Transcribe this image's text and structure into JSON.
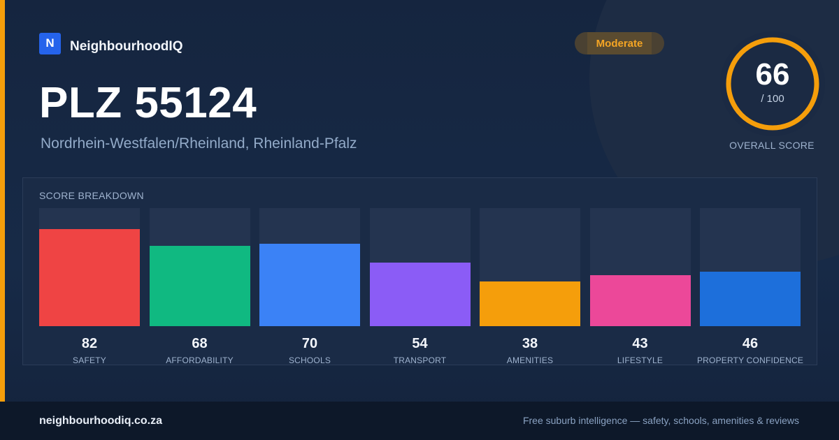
{
  "brand": {
    "logo_letter": "N",
    "name": "NeighbourhoodIQ"
  },
  "location": {
    "title": "PLZ 55124",
    "subtitle": "Nordrhein-Westfalen/Rheinland, Rheinland-Pfalz"
  },
  "badge": {
    "label": "Moderate",
    "color": "#f5a524"
  },
  "overall": {
    "score": "66",
    "max_label": "/ 100",
    "label": "OVERALL SCORE",
    "fraction": 0.66,
    "ring_color": "#f59e0b"
  },
  "breakdown": {
    "title": "SCORE BREAKDOWN"
  },
  "chart_data": {
    "type": "bar",
    "title": "SCORE BREAKDOWN",
    "categories": [
      "SAFETY",
      "AFFORDABILITY",
      "SCHOOLS",
      "TRANSPORT",
      "AMENITIES",
      "LIFESTYLE",
      "PROPERTY CONFIDENCE"
    ],
    "values": [
      82,
      68,
      70,
      54,
      38,
      43,
      46
    ],
    "colors": [
      "#ef4444",
      "#10b981",
      "#3b82f6",
      "#8b5cf6",
      "#f59e0b",
      "#ec4899",
      "#1d6fdb"
    ],
    "ylim": [
      0,
      100
    ],
    "grid": false
  },
  "footer": {
    "domain": "neighbourhoodiq.co.za",
    "tagline": "Free suburb intelligence — safety, schools, amenities & reviews"
  }
}
